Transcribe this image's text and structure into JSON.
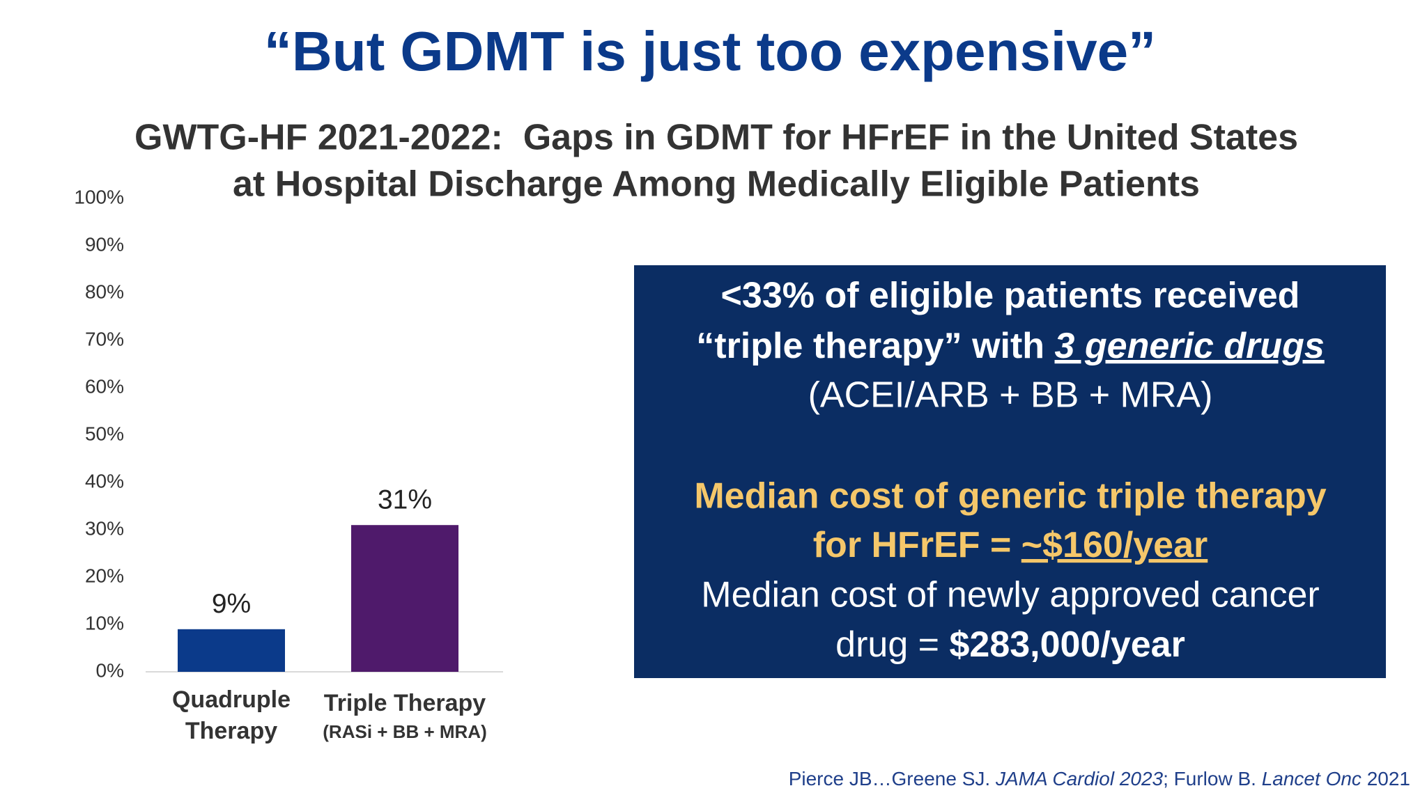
{
  "title": "“But GDMT is just too expensive”",
  "chart_data": {
    "type": "bar",
    "title": [
      "GWTG-HF 2021-2022:  Gaps in GDMT for HFrEF in the United States",
      "at Hospital Discharge Among Medically Eligible Patients"
    ],
    "categories": [
      [
        "Quadruple",
        "Therapy"
      ],
      [
        "Triple Therapy",
        "(RASi + BB + MRA)"
      ]
    ],
    "values": [
      9,
      31
    ],
    "value_labels": [
      "9%",
      "31%"
    ],
    "colors": [
      "#0b3a8a",
      "#4f1a6b"
    ],
    "ylim": [
      0,
      100
    ],
    "yticks": [
      {
        "value": 0,
        "label": "0%"
      },
      {
        "value": 10,
        "label": "10%"
      },
      {
        "value": 20,
        "label": "20%"
      },
      {
        "value": 30,
        "label": "30%"
      },
      {
        "value": 40,
        "label": "40%"
      },
      {
        "value": 50,
        "label": "50%"
      },
      {
        "value": 60,
        "label": "60%"
      },
      {
        "value": 70,
        "label": "70%"
      },
      {
        "value": 80,
        "label": "80%"
      },
      {
        "value": 90,
        "label": "90%"
      },
      {
        "value": 100,
        "label": "100%"
      }
    ],
    "grid": false
  },
  "callout": {
    "line1": "<33% of eligible patients received",
    "line2": [
      "“triple therapy” with ",
      "3 generic drugs"
    ],
    "line3": "(ACEI/ARB + BB + MRA)",
    "line4": "Median cost of generic triple therapy",
    "line5": [
      "for HFrEF = ",
      "~$160/year"
    ],
    "line6": "Median cost of newly approved cancer",
    "line7": [
      "drug = ",
      "$283,000/year"
    ]
  },
  "citation": [
    "Pierce JB…Greene SJ. ",
    "JAMA Cardiol 2023",
    "; Furlow B. ",
    "Lancet Onc",
    " 2021"
  ]
}
